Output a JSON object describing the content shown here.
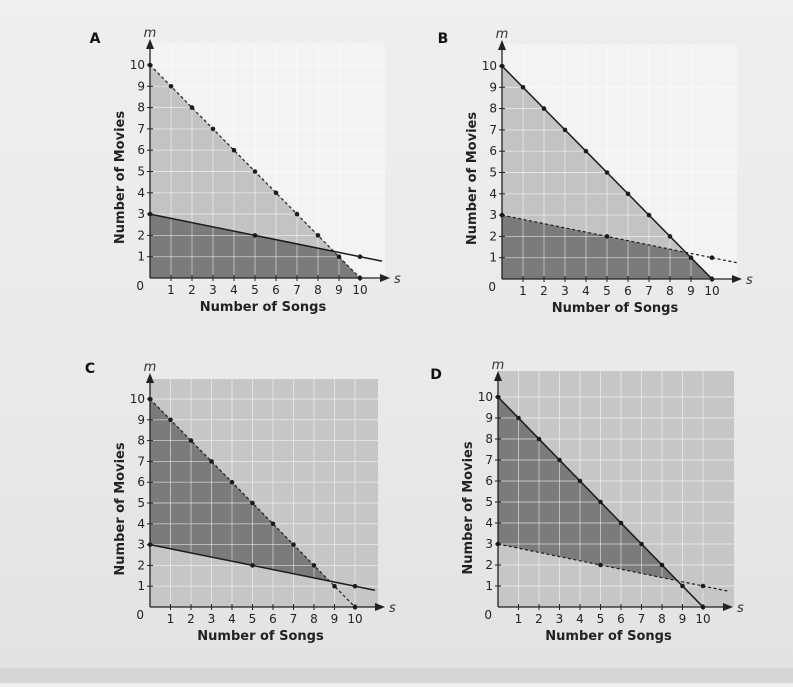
{
  "chart_data": [
    {
      "type": "line",
      "label": "A",
      "xvar": "s",
      "yvar": "m",
      "xlabel": "Number of Songs",
      "ylabel": "Number of Movies",
      "origin_label": "0",
      "xlim": [
        0,
        10
      ],
      "ylim": [
        0,
        10
      ],
      "x_ticks": [
        "1",
        "2",
        "3",
        "4",
        "5",
        "6",
        "7",
        "8",
        "9",
        "10"
      ],
      "y_ticks": [
        "1",
        "2",
        "3",
        "4",
        "5",
        "6",
        "7",
        "8",
        "9",
        "10"
      ],
      "grid": true,
      "lines": [
        {
          "style": "dashed",
          "x": [
            0,
            1,
            2,
            3,
            4,
            5,
            6,
            7,
            8,
            9,
            10
          ],
          "y": [
            10,
            9,
            8,
            7,
            6,
            5,
            4,
            3,
            2,
            1,
            0
          ]
        },
        {
          "style": "solid",
          "x": [
            0,
            5,
            10
          ],
          "y": [
            3,
            2,
            1
          ]
        }
      ],
      "shading": [
        {
          "region": "below-both",
          "color": "#7b7b7b"
        },
        {
          "region": "below-first-only",
          "color": "#c3c3c3"
        }
      ]
    },
    {
      "type": "line",
      "label": "B",
      "xvar": "s",
      "yvar": "m",
      "xlabel": "Number of Songs",
      "ylabel": "Number of Movies",
      "origin_label": "0",
      "xlim": [
        0,
        10
      ],
      "ylim": [
        0,
        10
      ],
      "x_ticks": [
        "1",
        "2",
        "3",
        "4",
        "5",
        "6",
        "7",
        "8",
        "9",
        "10"
      ],
      "y_ticks": [
        "1",
        "2",
        "3",
        "4",
        "5",
        "6",
        "7",
        "8",
        "9",
        "10"
      ],
      "grid": true,
      "lines": [
        {
          "style": "solid",
          "x": [
            0,
            1,
            2,
            3,
            4,
            5,
            6,
            7,
            8,
            9,
            10
          ],
          "y": [
            10,
            9,
            8,
            7,
            6,
            5,
            4,
            3,
            2,
            1,
            0
          ]
        },
        {
          "style": "dashed",
          "x": [
            0,
            5,
            10
          ],
          "y": [
            3,
            2,
            1
          ]
        }
      ],
      "shading": [
        {
          "region": "below-both",
          "color": "#7b7b7b"
        },
        {
          "region": "below-first-only",
          "color": "#c3c3c3"
        }
      ]
    },
    {
      "type": "line",
      "label": "C",
      "xvar": "s",
      "yvar": "m",
      "xlabel": "Number of Songs",
      "ylabel": "Number of Movies",
      "origin_label": "0",
      "xlim": [
        0,
        10
      ],
      "ylim": [
        0,
        10
      ],
      "x_ticks": [
        "1",
        "2",
        "3",
        "4",
        "5",
        "6",
        "7",
        "8",
        "9",
        "10"
      ],
      "y_ticks": [
        "1",
        "2",
        "3",
        "4",
        "5",
        "6",
        "7",
        "8",
        "9",
        "10"
      ],
      "grid": true,
      "lines": [
        {
          "style": "dashed",
          "x": [
            0,
            1,
            2,
            3,
            4,
            5,
            6,
            7,
            8,
            9,
            10
          ],
          "y": [
            10,
            9,
            8,
            7,
            6,
            5,
            4,
            3,
            2,
            1,
            0
          ]
        },
        {
          "style": "solid",
          "x": [
            0,
            5,
            10
          ],
          "y": [
            3,
            2,
            1
          ]
        }
      ],
      "shading": [
        {
          "region": "background",
          "color": "#c6c6c6"
        },
        {
          "region": "between-lines",
          "color": "#7b7b7b"
        }
      ]
    },
    {
      "type": "line",
      "label": "D",
      "xvar": "s",
      "yvar": "m",
      "xlabel": "Number of Songs",
      "ylabel": "Number of Movies",
      "origin_label": "0",
      "xlim": [
        0,
        10
      ],
      "ylim": [
        0,
        10
      ],
      "x_ticks": [
        "1",
        "2",
        "3",
        "4",
        "5",
        "6",
        "7",
        "8",
        "9",
        "10"
      ],
      "y_ticks": [
        "1",
        "2",
        "3",
        "4",
        "5",
        "6",
        "7",
        "8",
        "9",
        "10"
      ],
      "grid": true,
      "lines": [
        {
          "style": "solid",
          "x": [
            0,
            1,
            2,
            3,
            4,
            5,
            6,
            7,
            8,
            9,
            10
          ],
          "y": [
            10,
            9,
            8,
            7,
            6,
            5,
            4,
            3,
            2,
            1,
            0
          ]
        },
        {
          "style": "dashed",
          "x": [
            0,
            5,
            10
          ],
          "y": [
            3,
            2,
            1
          ]
        }
      ],
      "shading": [
        {
          "region": "background",
          "color": "#c6c6c6"
        },
        {
          "region": "between-lines",
          "color": "#7b7b7b"
        }
      ]
    }
  ]
}
